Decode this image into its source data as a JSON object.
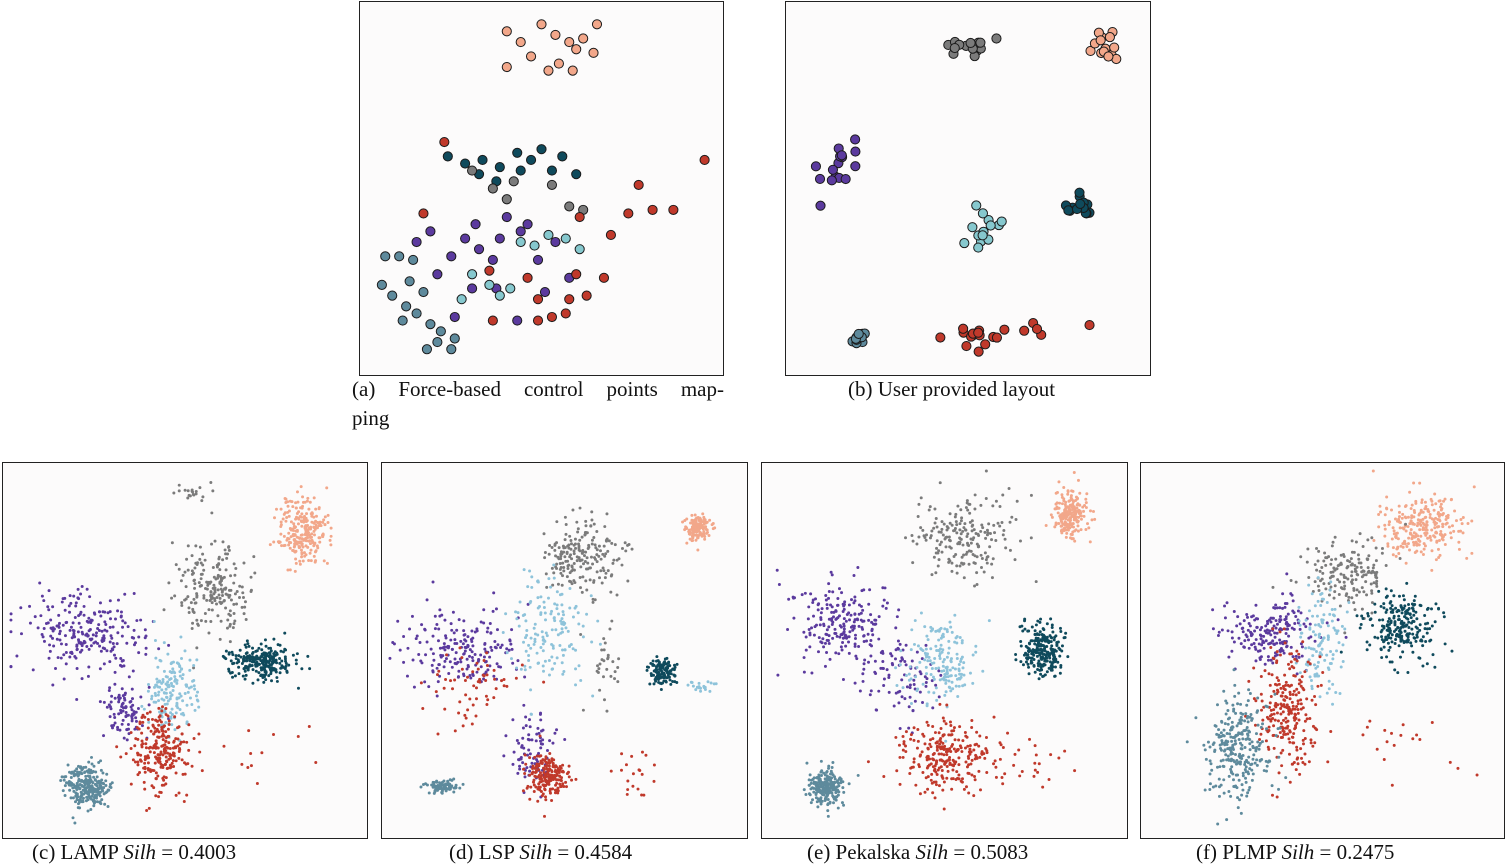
{
  "colors": {
    "peach": "#F2A78A",
    "gray": "#7B7B7B",
    "purple": "#5B3A9E",
    "teal_light": "#86C8CE",
    "teal_dark": "#0F4A5C",
    "red": "#C0392B",
    "slate": "#5E8A9C",
    "sky": "#8EC3DA"
  },
  "captions": {
    "a_line1": "(a) Force-based control points map-",
    "a_line2": "ping",
    "b": "(b) User provided layout",
    "c_pre": "(c) LAMP ",
    "c_var": "Silh",
    "c_val": " = 0.4003",
    "d_pre": "(d) LSP ",
    "d_var": "Silh",
    "d_val": " = 0.4584",
    "e_pre": "(e) Pekalska ",
    "e_var": "Silh",
    "e_val": " = 0.5083",
    "f_pre": "(f) PLMP ",
    "f_var": "Silh",
    "f_val": " = 0.2475"
  },
  "chart_data": [
    {
      "type": "scatter",
      "id": "a",
      "title": "(a) Force-based control points mapping",
      "xlim": [
        0,
        1
      ],
      "ylim": [
        0,
        1
      ],
      "marker": "large-outlined",
      "series": [
        {
          "color_key": "peach",
          "points": [
            [
              0.4,
              0.94
            ],
            [
              0.44,
              0.91
            ],
            [
              0.5,
              0.96
            ],
            [
              0.54,
              0.93
            ],
            [
              0.58,
              0.91
            ],
            [
              0.62,
              0.92
            ],
            [
              0.65,
              0.88
            ],
            [
              0.66,
              0.96
            ],
            [
              0.6,
              0.89
            ],
            [
              0.47,
              0.87
            ],
            [
              0.55,
              0.85
            ],
            [
              0.4,
              0.84
            ],
            [
              0.52,
              0.83
            ],
            [
              0.59,
              0.83
            ]
          ]
        },
        {
          "color_key": "teal_dark",
          "points": [
            [
              0.23,
              0.59
            ],
            [
              0.28,
              0.57
            ],
            [
              0.33,
              0.58
            ],
            [
              0.38,
              0.56
            ],
            [
              0.43,
              0.6
            ],
            [
              0.47,
              0.58
            ],
            [
              0.37,
              0.52
            ],
            [
              0.44,
              0.55
            ],
            [
              0.53,
              0.55
            ],
            [
              0.6,
              0.54
            ],
            [
              0.32,
              0.54
            ],
            [
              0.5,
              0.61
            ],
            [
              0.56,
              0.59
            ]
          ]
        },
        {
          "color_key": "gray",
          "points": [
            [
              0.36,
              0.5
            ],
            [
              0.4,
              0.47
            ],
            [
              0.3,
              0.55
            ],
            [
              0.53,
              0.51
            ],
            [
              0.58,
              0.45
            ],
            [
              0.62,
              0.44
            ],
            [
              0.42,
              0.52
            ]
          ]
        },
        {
          "color_key": "purple",
          "points": [
            [
              0.14,
              0.35
            ],
            [
              0.18,
              0.38
            ],
            [
              0.24,
              0.31
            ],
            [
              0.28,
              0.36
            ],
            [
              0.31,
              0.4
            ],
            [
              0.32,
              0.33
            ],
            [
              0.38,
              0.36
            ],
            [
              0.4,
              0.42
            ],
            [
              0.44,
              0.38
            ],
            [
              0.36,
              0.3
            ],
            [
              0.3,
              0.22
            ],
            [
              0.37,
              0.22
            ],
            [
              0.43,
              0.13
            ],
            [
              0.25,
              0.14
            ],
            [
              0.2,
              0.26
            ],
            [
              0.54,
              0.35
            ],
            [
              0.49,
              0.3
            ],
            [
              0.51,
              0.21
            ],
            [
              0.58,
              0.25
            ],
            [
              0.46,
              0.4
            ]
          ]
        },
        {
          "color_key": "teal_light",
          "points": [
            [
              0.44,
              0.35
            ],
            [
              0.48,
              0.34
            ],
            [
              0.52,
              0.37
            ],
            [
              0.57,
              0.36
            ],
            [
              0.61,
              0.33
            ],
            [
              0.35,
              0.23
            ],
            [
              0.38,
              0.2
            ],
            [
              0.41,
              0.22
            ],
            [
              0.27,
              0.19
            ],
            [
              0.3,
              0.26
            ]
          ]
        },
        {
          "color_key": "red",
          "points": [
            [
              0.22,
              0.63
            ],
            [
              0.35,
              0.27
            ],
            [
              0.49,
              0.13
            ],
            [
              0.53,
              0.14
            ],
            [
              0.57,
              0.15
            ],
            [
              0.58,
              0.19
            ],
            [
              0.49,
              0.19
            ],
            [
              0.63,
              0.2
            ],
            [
              0.6,
              0.26
            ],
            [
              0.68,
              0.25
            ],
            [
              0.7,
              0.37
            ],
            [
              0.75,
              0.43
            ],
            [
              0.82,
              0.44
            ],
            [
              0.88,
              0.44
            ],
            [
              0.97,
              0.58
            ],
            [
              0.78,
              0.51
            ],
            [
              0.61,
              0.42
            ],
            [
              0.46,
              0.25
            ],
            [
              0.36,
              0.13
            ],
            [
              0.16,
              0.43
            ]
          ]
        },
        {
          "color_key": "slate",
          "points": [
            [
              0.05,
              0.31
            ],
            [
              0.09,
              0.31
            ],
            [
              0.13,
              0.3
            ],
            [
              0.04,
              0.23
            ],
            [
              0.07,
              0.2
            ],
            [
              0.11,
              0.17
            ],
            [
              0.14,
              0.15
            ],
            [
              0.12,
              0.24
            ],
            [
              0.16,
              0.21
            ],
            [
              0.18,
              0.12
            ],
            [
              0.2,
              0.07
            ],
            [
              0.25,
              0.08
            ],
            [
              0.17,
              0.05
            ],
            [
              0.24,
              0.05
            ],
            [
              0.1,
              0.13
            ],
            [
              0.21,
              0.1
            ]
          ]
        }
      ]
    },
    {
      "type": "scatter",
      "id": "b",
      "title": "(b) User provided layout",
      "xlim": [
        0,
        1
      ],
      "ylim": [
        0,
        1
      ],
      "marker": "large-outlined",
      "clusters": [
        {
          "color_key": "gray",
          "center": [
            0.49,
            0.9
          ],
          "spread": [
            0.06,
            0.03
          ],
          "n": 14
        },
        {
          "color_key": "peach",
          "center": [
            0.9,
            0.9
          ],
          "spread": [
            0.04,
            0.04
          ],
          "n": 14
        },
        {
          "color_key": "purple",
          "center": [
            0.13,
            0.56
          ],
          "spread": [
            0.05,
            0.06
          ],
          "n": 16
        },
        {
          "color_key": "teal_light",
          "center": [
            0.55,
            0.39
          ],
          "spread": [
            0.04,
            0.07
          ],
          "n": 14
        },
        {
          "color_key": "teal_dark",
          "center": [
            0.82,
            0.45
          ],
          "spread": [
            0.03,
            0.03
          ],
          "n": 16
        },
        {
          "color_key": "slate",
          "center": [
            0.18,
            0.08
          ],
          "spread": [
            0.03,
            0.015
          ],
          "n": 12
        },
        {
          "color_key": "red",
          "center": [
            0.52,
            0.09
          ],
          "spread": [
            0.05,
            0.03
          ],
          "n": 14
        },
        {
          "color_key": "red",
          "center": [
            0.68,
            0.11
          ],
          "spread": [
            0.05,
            0.02
          ],
          "n": 5
        },
        {
          "color_key": "red",
          "center": [
            0.85,
            0.12
          ],
          "spread": [
            0.01,
            0.01
          ],
          "n": 1
        }
      ]
    },
    {
      "type": "scatter",
      "id": "c",
      "title": "(c) LAMP Silh = 0.4003",
      "xlim": [
        0,
        1
      ],
      "ylim": [
        0,
        1
      ],
      "marker": "small",
      "clusters": [
        {
          "color_key": "peach",
          "center": [
            0.84,
            0.83
          ],
          "spread": [
            0.06,
            0.08
          ],
          "n": 260
        },
        {
          "color_key": "gray",
          "center": [
            0.58,
            0.67
          ],
          "spread": [
            0.09,
            0.11
          ],
          "n": 200
        },
        {
          "color_key": "gray",
          "center": [
            0.52,
            0.94
          ],
          "spread": [
            0.05,
            0.02
          ],
          "n": 20
        },
        {
          "color_key": "purple",
          "center": [
            0.2,
            0.55
          ],
          "spread": [
            0.15,
            0.09
          ],
          "n": 240
        },
        {
          "color_key": "purple",
          "center": [
            0.33,
            0.33
          ],
          "spread": [
            0.05,
            0.08
          ],
          "n": 90
        },
        {
          "color_key": "teal_dark",
          "center": [
            0.72,
            0.47
          ],
          "spread": [
            0.08,
            0.04
          ],
          "n": 240
        },
        {
          "color_key": "sky",
          "center": [
            0.46,
            0.39
          ],
          "spread": [
            0.06,
            0.1
          ],
          "n": 160
        },
        {
          "color_key": "red",
          "center": [
            0.43,
            0.22
          ],
          "spread": [
            0.07,
            0.1
          ],
          "n": 240
        },
        {
          "color_key": "red",
          "center": [
            0.7,
            0.2
          ],
          "spread": [
            0.14,
            0.08
          ],
          "n": 14
        },
        {
          "color_key": "slate",
          "center": [
            0.22,
            0.12
          ],
          "spread": [
            0.05,
            0.05
          ],
          "n": 260
        }
      ]
    },
    {
      "type": "scatter",
      "id": "d",
      "title": "(d) LSP Silh = 0.4584",
      "xlim": [
        0,
        1
      ],
      "ylim": [
        0,
        1
      ],
      "marker": "small",
      "clusters": [
        {
          "color_key": "peach",
          "center": [
            0.88,
            0.84
          ],
          "spread": [
            0.03,
            0.03
          ],
          "n": 140
        },
        {
          "color_key": "gray",
          "center": [
            0.55,
            0.76
          ],
          "spread": [
            0.09,
            0.09
          ],
          "n": 200
        },
        {
          "color_key": "gray",
          "center": [
            0.62,
            0.45
          ],
          "spread": [
            0.05,
            0.1
          ],
          "n": 30
        },
        {
          "color_key": "teal_dark",
          "center": [
            0.78,
            0.44
          ],
          "spread": [
            0.03,
            0.03
          ],
          "n": 120
        },
        {
          "color_key": "purple",
          "center": [
            0.2,
            0.5
          ],
          "spread": [
            0.14,
            0.1
          ],
          "n": 200
        },
        {
          "color_key": "purple",
          "center": [
            0.4,
            0.22
          ],
          "spread": [
            0.06,
            0.08
          ],
          "n": 80
        },
        {
          "color_key": "sky",
          "center": [
            0.45,
            0.55
          ],
          "spread": [
            0.1,
            0.14
          ],
          "n": 150
        },
        {
          "color_key": "sky",
          "center": [
            0.88,
            0.4
          ],
          "spread": [
            0.04,
            0.01
          ],
          "n": 20
        },
        {
          "color_key": "red",
          "center": [
            0.45,
            0.15
          ],
          "spread": [
            0.05,
            0.05
          ],
          "n": 200
        },
        {
          "color_key": "red",
          "center": [
            0.25,
            0.4
          ],
          "spread": [
            0.12,
            0.1
          ],
          "n": 60
        },
        {
          "color_key": "red",
          "center": [
            0.7,
            0.15
          ],
          "spread": [
            0.06,
            0.06
          ],
          "n": 20
        },
        {
          "color_key": "slate",
          "center": [
            0.15,
            0.12
          ],
          "spread": [
            0.04,
            0.015
          ],
          "n": 80
        }
      ]
    },
    {
      "type": "scatter",
      "id": "e",
      "title": "(e) Pekalska Silh = 0.5083",
      "xlim": [
        0,
        1
      ],
      "ylim": [
        0,
        1
      ],
      "marker": "small",
      "clusters": [
        {
          "color_key": "peach",
          "center": [
            0.86,
            0.88
          ],
          "spread": [
            0.04,
            0.06
          ],
          "n": 220
        },
        {
          "color_key": "gray",
          "center": [
            0.55,
            0.82
          ],
          "spread": [
            0.12,
            0.1
          ],
          "n": 200
        },
        {
          "color_key": "purple",
          "center": [
            0.2,
            0.57
          ],
          "spread": [
            0.12,
            0.1
          ],
          "n": 220
        },
        {
          "color_key": "purple",
          "center": [
            0.38,
            0.42
          ],
          "spread": [
            0.08,
            0.1
          ],
          "n": 80
        },
        {
          "color_key": "teal_dark",
          "center": [
            0.78,
            0.5
          ],
          "spread": [
            0.05,
            0.06
          ],
          "n": 240
        },
        {
          "color_key": "sky",
          "center": [
            0.5,
            0.47
          ],
          "spread": [
            0.08,
            0.1
          ],
          "n": 170
        },
        {
          "color_key": "red",
          "center": [
            0.5,
            0.2
          ],
          "spread": [
            0.12,
            0.08
          ],
          "n": 260
        },
        {
          "color_key": "red",
          "center": [
            0.75,
            0.18
          ],
          "spread": [
            0.1,
            0.06
          ],
          "n": 20
        },
        {
          "color_key": "slate",
          "center": [
            0.16,
            0.12
          ],
          "spread": [
            0.04,
            0.04
          ],
          "n": 240
        }
      ]
    },
    {
      "type": "scatter",
      "id": "f",
      "title": "(f) PLMP Silh = 0.2475",
      "xlim": [
        0,
        1
      ],
      "ylim": [
        0,
        1
      ],
      "marker": "small",
      "clusters": [
        {
          "color_key": "peach",
          "center": [
            0.78,
            0.85
          ],
          "spread": [
            0.1,
            0.07
          ],
          "n": 260
        },
        {
          "color_key": "gray",
          "center": [
            0.57,
            0.72
          ],
          "spread": [
            0.1,
            0.08
          ],
          "n": 170
        },
        {
          "color_key": "teal_dark",
          "center": [
            0.72,
            0.57
          ],
          "spread": [
            0.08,
            0.08
          ],
          "n": 240
        },
        {
          "color_key": "purple",
          "center": [
            0.35,
            0.55
          ],
          "spread": [
            0.12,
            0.08
          ],
          "n": 200
        },
        {
          "color_key": "sky",
          "center": [
            0.5,
            0.52
          ],
          "spread": [
            0.05,
            0.14
          ],
          "n": 120
        },
        {
          "color_key": "red",
          "center": [
            0.4,
            0.33
          ],
          "spread": [
            0.07,
            0.14
          ],
          "n": 240
        },
        {
          "color_key": "red",
          "center": [
            0.75,
            0.25
          ],
          "spread": [
            0.14,
            0.08
          ],
          "n": 20
        },
        {
          "color_key": "slate",
          "center": [
            0.26,
            0.23
          ],
          "spread": [
            0.08,
            0.12
          ],
          "n": 280
        }
      ]
    }
  ]
}
